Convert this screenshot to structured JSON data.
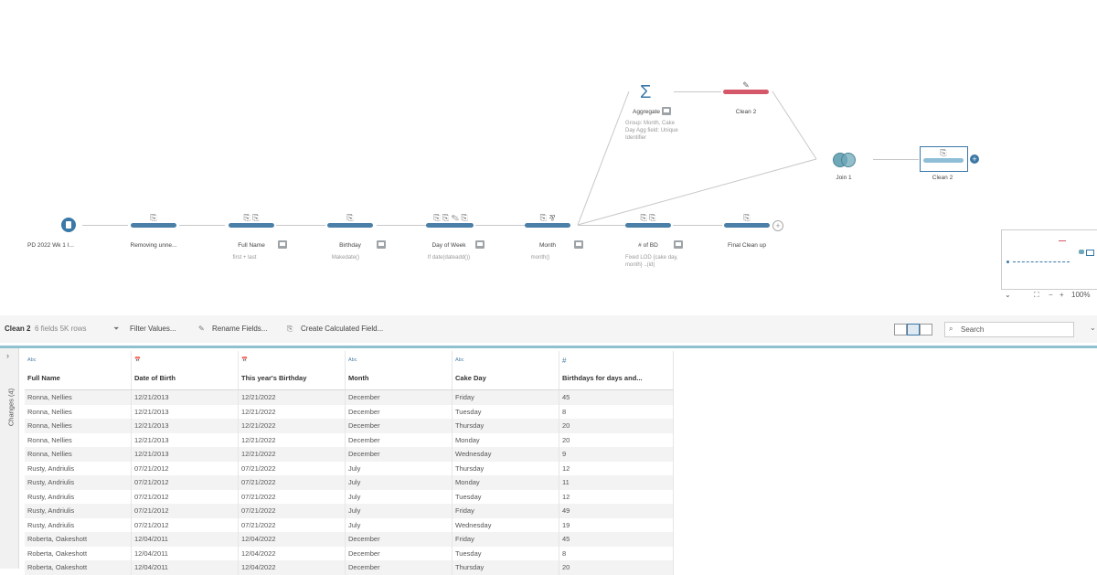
{
  "flow": {
    "steps": [
      {
        "label": "PD 2022 Wk 1 I...",
        "sub": ""
      },
      {
        "label": "Removing unne...",
        "sub": ""
      },
      {
        "label": "Full Name",
        "sub": "first + last"
      },
      {
        "label": "Birthday",
        "sub": "Makedate()"
      },
      {
        "label": "Day of Week",
        "sub": "If date(dateadd())"
      },
      {
        "label": "Month",
        "sub": "month()"
      },
      {
        "label": "# of BD",
        "sub": "Fixed LOD {cake day,",
        "sub2": "month} ..(id)"
      },
      {
        "label": "Final Clean up",
        "sub": ""
      }
    ],
    "aggregate": {
      "label": "Aggregate",
      "lines": [
        "Group: Month, Cake",
        "Day Agg field: Unique",
        "Identifier"
      ]
    },
    "clean2_top": {
      "label": "Clean 2"
    },
    "join": {
      "label": "Join 1"
    },
    "clean2_right": {
      "label": "Clean 2"
    }
  },
  "minimap": {
    "zoom": "100%"
  },
  "toolbar": {
    "step_name": "Clean 2",
    "fields_info": "6 fields  5K rows",
    "filter": "Filter Values...",
    "rename": "Rename Fields...",
    "calc": "Create Calculated Field...",
    "search_placeholder": "Search"
  },
  "sidebar": {
    "changes": "Changes (4)"
  },
  "table": {
    "columns": [
      {
        "type": "Abc",
        "name": "Full Name"
      },
      {
        "type": "date-icon",
        "name": "Date of Birth"
      },
      {
        "type": "date-icon",
        "name": "This year's Birthday"
      },
      {
        "type": "Abc",
        "name": "Month"
      },
      {
        "type": "Abc",
        "name": "Cake Day"
      },
      {
        "type": "#",
        "name": "Birthdays for days and..."
      }
    ],
    "rows": [
      [
        "Ronna, Nellies",
        "12/21/2013",
        "12/21/2022",
        "December",
        "Friday",
        "45"
      ],
      [
        "Ronna, Nellies",
        "12/21/2013",
        "12/21/2022",
        "December",
        "Tuesday",
        "8"
      ],
      [
        "Ronna, Nellies",
        "12/21/2013",
        "12/21/2022",
        "December",
        "Thursday",
        "20"
      ],
      [
        "Ronna, Nellies",
        "12/21/2013",
        "12/21/2022",
        "December",
        "Monday",
        "20"
      ],
      [
        "Ronna, Nellies",
        "12/21/2013",
        "12/21/2022",
        "December",
        "Wednesday",
        "9"
      ],
      [
        "Rusty, Andriulis",
        "07/21/2012",
        "07/21/2022",
        "July",
        "Thursday",
        "12"
      ],
      [
        "Rusty, Andriulis",
        "07/21/2012",
        "07/21/2022",
        "July",
        "Monday",
        "11"
      ],
      [
        "Rusty, Andriulis",
        "07/21/2012",
        "07/21/2022",
        "July",
        "Tuesday",
        "12"
      ],
      [
        "Rusty, Andriulis",
        "07/21/2012",
        "07/21/2022",
        "July",
        "Friday",
        "49"
      ],
      [
        "Rusty, Andriulis",
        "07/21/2012",
        "07/21/2022",
        "July",
        "Wednesday",
        "19"
      ],
      [
        "Roberta, Oakeshott",
        "12/04/2011",
        "12/04/2022",
        "December",
        "Friday",
        "45"
      ],
      [
        "Roberta, Oakeshott",
        "12/04/2011",
        "12/04/2022",
        "December",
        "Tuesday",
        "8"
      ],
      [
        "Roberta, Oakeshott",
        "12/04/2011",
        "12/04/2022",
        "December",
        "Thursday",
        "20"
      ]
    ]
  }
}
